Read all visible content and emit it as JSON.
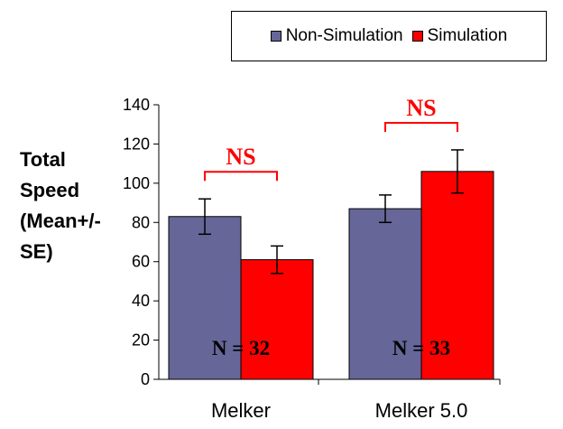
{
  "chart_data": {
    "type": "bar",
    "categories": [
      "Melker",
      "Melker 5.0"
    ],
    "series": [
      {
        "name": "Non-Simulation",
        "color": "#666699",
        "values": [
          83,
          87
        ],
        "errors": [
          9,
          7
        ]
      },
      {
        "name": "Simulation",
        "color": "#ff0000",
        "values": [
          61,
          106
        ],
        "errors": [
          7,
          11
        ]
      }
    ],
    "ylabel": "Total Speed (Mean+/-SE)",
    "xlabel": "",
    "ylim": [
      0,
      140
    ],
    "yticks": [
      0,
      20,
      40,
      60,
      80,
      100,
      120,
      140
    ],
    "legend_position": "top-right",
    "significance": [
      {
        "label": "NS",
        "color": "#ff0000"
      },
      {
        "label": "NS",
        "color": "#ff0000"
      }
    ],
    "annotations": [
      "N = 32",
      "N = 33"
    ]
  }
}
